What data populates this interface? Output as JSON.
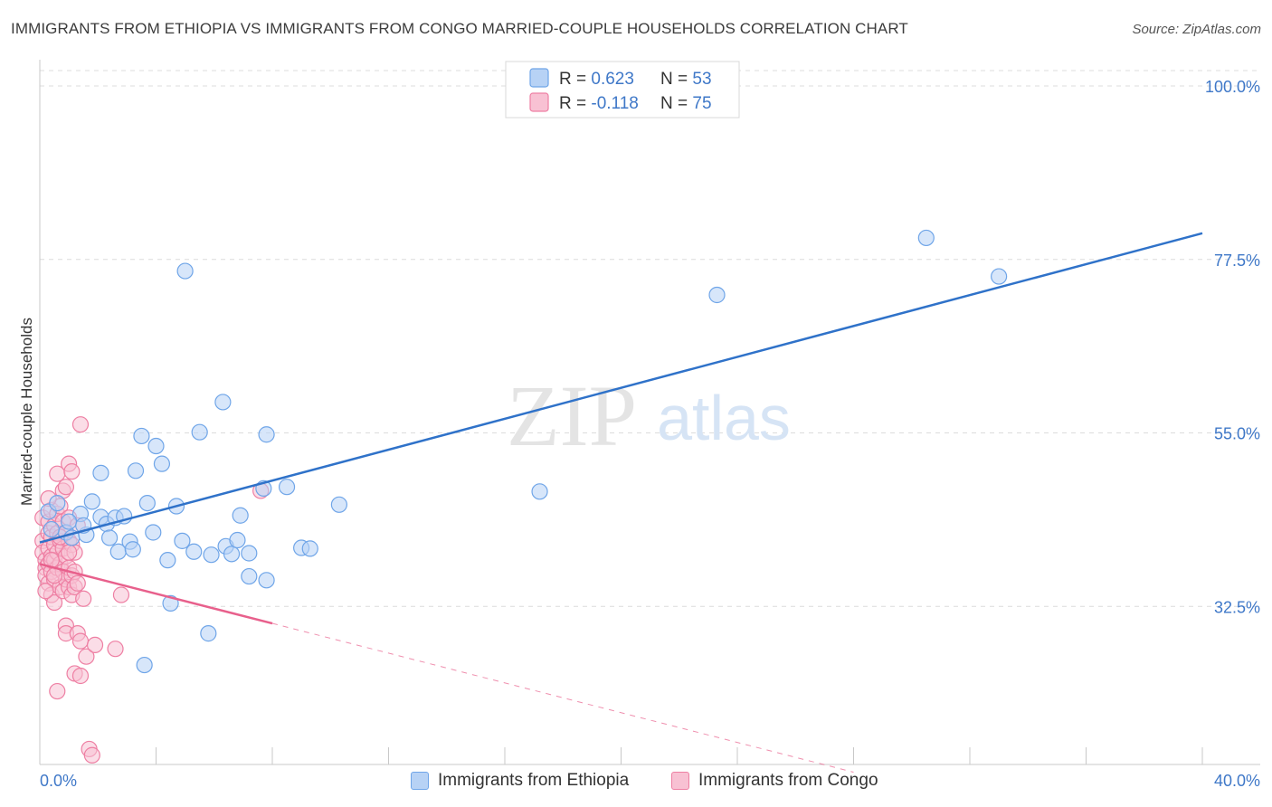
{
  "title": "IMMIGRANTS FROM ETHIOPIA VS IMMIGRANTS FROM CONGO MARRIED-COUPLE HOUSEHOLDS CORRELATION CHART",
  "source": "Source: ZipAtlas.com",
  "watermark": {
    "zip": "ZIP",
    "atlas": "atlas"
  },
  "colors": {
    "blue": "#6fa5e8",
    "blue_fill": "#b7d2f5",
    "blue_line": "#2f72c9",
    "pink": "#ee7fa3",
    "pink_fill": "#f8c1d3",
    "pink_line": "#e8608c",
    "tick_text": "#3f78c8",
    "grid": "#dcdcdc"
  },
  "chart_data": {
    "type": "scatter",
    "ylabel": "Married-couple Households",
    "xlabel": "",
    "xlim": [
      0,
      40
    ],
    "ylim": [
      12,
      102
    ],
    "x_ticks_labels": {
      "left": "0.0%",
      "right": "40.0%"
    },
    "y_ticks": [
      {
        "value": 100.0,
        "label": "100.0%"
      },
      {
        "value": 77.5,
        "label": "77.5%"
      },
      {
        "value": 55.0,
        "label": "55.0%"
      },
      {
        "value": 32.5,
        "label": "32.5%"
      }
    ],
    "legend_stats": [
      {
        "r_label": "R = ",
        "r_value": "0.623",
        "n_label": "N = ",
        "n_value": "53"
      },
      {
        "r_label": "R = ",
        "r_value": "-0.118",
        "n_label": "N = ",
        "n_value": "75"
      }
    ],
    "series": [
      {
        "name": "Immigrants from Ethiopia",
        "color": "blue",
        "trend": {
          "x0": 0.0,
          "y0": 40.8,
          "x1": 40.0,
          "y1": 80.9
        },
        "points": [
          [
            0.3,
            44.8
          ],
          [
            0.6,
            45.9
          ],
          [
            0.9,
            42.1
          ],
          [
            1.1,
            41.4
          ],
          [
            1.4,
            44.5
          ],
          [
            1.6,
            41.8
          ],
          [
            1.8,
            46.1
          ],
          [
            2.1,
            44.1
          ],
          [
            2.1,
            49.8
          ],
          [
            2.3,
            43.2
          ],
          [
            2.4,
            41.4
          ],
          [
            2.6,
            44.0
          ],
          [
            2.7,
            39.6
          ],
          [
            2.9,
            44.2
          ],
          [
            3.1,
            40.9
          ],
          [
            3.3,
            50.1
          ],
          [
            3.5,
            54.6
          ],
          [
            3.7,
            45.9
          ],
          [
            3.9,
            42.1
          ],
          [
            4.0,
            53.3
          ],
          [
            4.2,
            51.0
          ],
          [
            4.4,
            38.5
          ],
          [
            4.5,
            32.9
          ],
          [
            4.7,
            45.5
          ],
          [
            4.9,
            41.0
          ],
          [
            5.0,
            76.0
          ],
          [
            5.3,
            39.6
          ],
          [
            5.5,
            55.1
          ],
          [
            5.8,
            29.0
          ],
          [
            5.9,
            39.2
          ],
          [
            6.3,
            59.0
          ],
          [
            6.4,
            40.3
          ],
          [
            6.6,
            39.3
          ],
          [
            6.8,
            41.1
          ],
          [
            6.9,
            44.3
          ],
          [
            7.2,
            39.4
          ],
          [
            7.2,
            36.4
          ],
          [
            7.7,
            47.8
          ],
          [
            7.8,
            35.9
          ],
          [
            7.8,
            54.8
          ],
          [
            8.5,
            48.0
          ],
          [
            9.0,
            40.1
          ],
          [
            9.3,
            40.0
          ],
          [
            10.3,
            45.7
          ],
          [
            3.6,
            24.9
          ],
          [
            17.2,
            47.4
          ],
          [
            23.3,
            72.9
          ],
          [
            30.5,
            80.3
          ],
          [
            33.0,
            75.3
          ],
          [
            1.0,
            43.5
          ],
          [
            1.5,
            43.0
          ],
          [
            3.2,
            39.9
          ],
          [
            0.4,
            42.5
          ]
        ]
      },
      {
        "name": "Immigrants from Congo",
        "color": "pink",
        "trend": {
          "x0": 0.0,
          "y0": 38.0,
          "x1": 8.0,
          "y1": 30.3,
          "dash_x1": 28.0,
          "dash_y1": 11.0
        },
        "points": [
          [
            0.1,
            44.0
          ],
          [
            0.1,
            41.0
          ],
          [
            0.1,
            39.5
          ],
          [
            0.2,
            38.5
          ],
          [
            0.2,
            37.5
          ],
          [
            0.2,
            36.5
          ],
          [
            0.3,
            43.5
          ],
          [
            0.3,
            42.0
          ],
          [
            0.3,
            40.0
          ],
          [
            0.3,
            38.0
          ],
          [
            0.3,
            35.5
          ],
          [
            0.4,
            45.0
          ],
          [
            0.4,
            41.5
          ],
          [
            0.4,
            39.0
          ],
          [
            0.4,
            37.0
          ],
          [
            0.4,
            34.0
          ],
          [
            0.5,
            43.0
          ],
          [
            0.5,
            40.5
          ],
          [
            0.5,
            38.5
          ],
          [
            0.5,
            36.0
          ],
          [
            0.5,
            33.0
          ],
          [
            0.6,
            49.7
          ],
          [
            0.6,
            44.5
          ],
          [
            0.6,
            42.0
          ],
          [
            0.6,
            39.5
          ],
          [
            0.6,
            37.5
          ],
          [
            0.7,
            45.5
          ],
          [
            0.7,
            41.0
          ],
          [
            0.7,
            38.0
          ],
          [
            0.7,
            35.0
          ],
          [
            0.8,
            47.5
          ],
          [
            0.8,
            43.5
          ],
          [
            0.8,
            40.0
          ],
          [
            0.8,
            37.0
          ],
          [
            0.8,
            34.5
          ],
          [
            0.9,
            48.0
          ],
          [
            0.9,
            42.0
          ],
          [
            0.9,
            39.0
          ],
          [
            0.9,
            36.0
          ],
          [
            0.9,
            30.0
          ],
          [
            0.9,
            29.0
          ],
          [
            1.0,
            51.0
          ],
          [
            1.0,
            44.0
          ],
          [
            1.0,
            41.0
          ],
          [
            1.0,
            37.5
          ],
          [
            1.0,
            35.0
          ],
          [
            1.1,
            50.0
          ],
          [
            1.1,
            40.5
          ],
          [
            1.1,
            36.5
          ],
          [
            1.1,
            34.0
          ],
          [
            1.2,
            39.5
          ],
          [
            1.2,
            37.0
          ],
          [
            1.2,
            35.0
          ],
          [
            1.2,
            23.8
          ],
          [
            1.3,
            43.0
          ],
          [
            1.3,
            35.5
          ],
          [
            1.3,
            29.0
          ],
          [
            1.4,
            56.1
          ],
          [
            1.4,
            28.0
          ],
          [
            1.4,
            23.5
          ],
          [
            1.5,
            33.5
          ],
          [
            1.6,
            26.0
          ],
          [
            1.7,
            14.0
          ],
          [
            1.8,
            13.2
          ],
          [
            1.9,
            27.5
          ],
          [
            2.6,
            27.0
          ],
          [
            2.8,
            34.0
          ],
          [
            7.6,
            47.5
          ],
          [
            0.6,
            21.5
          ],
          [
            0.2,
            34.5
          ],
          [
            0.3,
            46.5
          ],
          [
            0.7,
            41.5
          ],
          [
            0.5,
            36.5
          ],
          [
            1.0,
            39.5
          ],
          [
            0.4,
            38.5
          ]
        ]
      }
    ]
  }
}
